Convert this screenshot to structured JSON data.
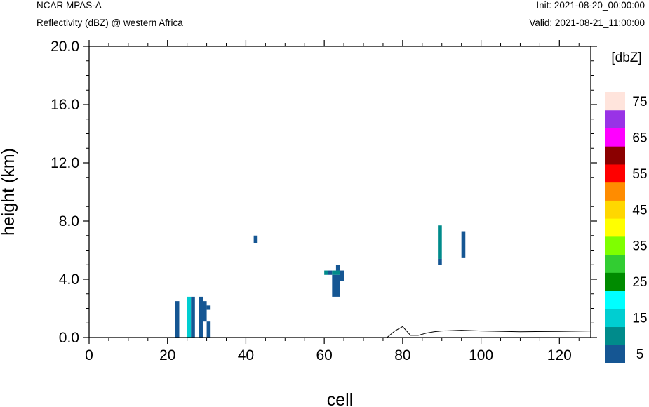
{
  "header": {
    "model": "NCAR MPAS-A",
    "title": "Reflectivity (dBZ) @ western Africa",
    "init": "Init: 2021-08-20_00:00:00",
    "valid": "Valid: 2021-08-21_11:00:00"
  },
  "chart_data": {
    "type": "heatmap",
    "title": "Reflectivity (dBZ) @ western Africa",
    "xlabel": "cell",
    "ylabel": "height (km)",
    "xlim": [
      0,
      128
    ],
    "ylim": [
      0,
      20
    ],
    "x_ticks": [
      "0",
      "20",
      "40",
      "60",
      "80",
      "100",
      "120"
    ],
    "y_ticks": [
      "0.0",
      "4.0",
      "8.0",
      "12.0",
      "16.0",
      "20.0"
    ],
    "grid": false,
    "colorbar": {
      "unit_label": "[dbZ]",
      "levels": [
        5,
        10,
        15,
        20,
        25,
        30,
        35,
        40,
        45,
        50,
        55,
        60,
        65,
        70,
        75
      ],
      "labels": [
        "5",
        "15",
        "25",
        "35",
        "45",
        "55",
        "65",
        "75"
      ],
      "colors": [
        "#155693",
        "#008B8B",
        "#00CED1",
        "#00FFFF",
        "#008B00",
        "#32CD32",
        "#7FFF00",
        "#FFFF00",
        "#FFD700",
        "#FF8C00",
        "#FF0000",
        "#8B0000",
        "#FF00FF",
        "#9933E6",
        "#FFE4DC"
      ]
    },
    "cells": [
      {
        "x0": 22,
        "x1": 23,
        "y0": 0.0,
        "y1": 2.5,
        "dbz": 5
      },
      {
        "x0": 25,
        "x1": 26,
        "y0": 0.0,
        "y1": 2.8,
        "dbz": 15
      },
      {
        "x0": 26,
        "x1": 27,
        "y0": 0.0,
        "y1": 2.8,
        "dbz": 5
      },
      {
        "x0": 28,
        "x1": 29,
        "y0": 0.0,
        "y1": 2.8,
        "dbz": 5
      },
      {
        "x0": 29,
        "x1": 30,
        "y0": 1.1,
        "y1": 2.5,
        "dbz": 5
      },
      {
        "x0": 30,
        "x1": 31,
        "y0": 0.0,
        "y1": 1.1,
        "dbz": 5
      },
      {
        "x0": 30,
        "x1": 31,
        "y0": 1.9,
        "y1": 2.2,
        "dbz": 5
      },
      {
        "x0": 42,
        "x1": 43,
        "y0": 6.5,
        "y1": 7.0,
        "dbz": 5
      },
      {
        "x0": 60,
        "x1": 61,
        "y0": 4.3,
        "y1": 4.6,
        "dbz": 10
      },
      {
        "x0": 61,
        "x1": 62,
        "y0": 4.3,
        "y1": 4.6,
        "dbz": 5
      },
      {
        "x0": 62,
        "x1": 64,
        "y0": 4.3,
        "y1": 4.6,
        "dbz": 10
      },
      {
        "x0": 62,
        "x1": 64,
        "y0": 2.8,
        "y1": 4.3,
        "dbz": 5
      },
      {
        "x0": 63,
        "x1": 64,
        "y0": 4.6,
        "y1": 5.0,
        "dbz": 5
      },
      {
        "x0": 64,
        "x1": 65,
        "y0": 3.9,
        "y1": 4.6,
        "dbz": 5
      },
      {
        "x0": 89,
        "x1": 90,
        "y0": 5.4,
        "y1": 7.7,
        "dbz": 10
      },
      {
        "x0": 89,
        "x1": 90,
        "y0": 5.0,
        "y1": 5.4,
        "dbz": 5
      },
      {
        "x0": 95,
        "x1": 96,
        "y0": 5.5,
        "y1": 7.3,
        "dbz": 5
      }
    ],
    "terrain": {
      "x": [
        0,
        10,
        20,
        30,
        40,
        50,
        60,
        70,
        76,
        78,
        80,
        82,
        84,
        86,
        88,
        90,
        95,
        100,
        110,
        120,
        128
      ],
      "y": [
        0.0,
        0.0,
        0.0,
        0.0,
        0.0,
        0.0,
        0.0,
        0.0,
        0.0,
        0.45,
        0.75,
        0.15,
        0.15,
        0.3,
        0.4,
        0.45,
        0.5,
        0.45,
        0.4,
        0.42,
        0.45
      ]
    }
  }
}
